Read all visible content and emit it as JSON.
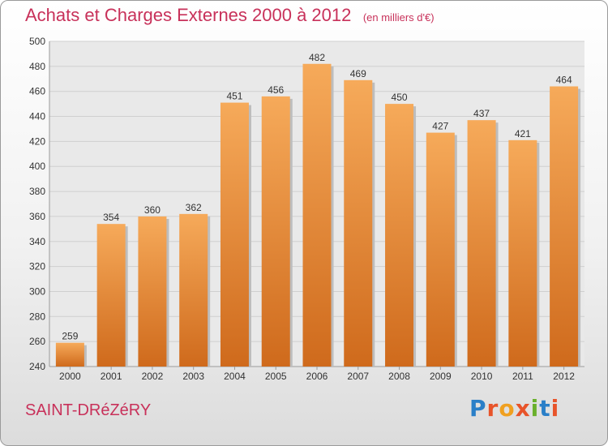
{
  "header": {
    "title": "Achats et Charges Externes 2000 à 2012",
    "unit": "(en milliers d'€)"
  },
  "footer": {
    "town": "SAINT-DRéZéRY",
    "logo_text": "Proxiti",
    "logo_colors": [
      "#2a7fc8",
      "#e8542a",
      "#f0a020",
      "#e8542a",
      "#6ab02c",
      "#2a7fc8",
      "#e8542a"
    ]
  },
  "colors": {
    "title": "#c8315a",
    "bar_light": "#f6aa5a",
    "bar_dark": "#cf6a1c",
    "grid": "#cfcfcf"
  },
  "chart_data": {
    "type": "bar",
    "title": "Achats et Charges Externes 2000 à 2012",
    "subtitle": "(en milliers d'€)",
    "categories": [
      "2000",
      "2001",
      "2002",
      "2003",
      "2004",
      "2005",
      "2006",
      "2007",
      "2008",
      "2009",
      "2010",
      "2011",
      "2012"
    ],
    "values": [
      259,
      354,
      360,
      362,
      451,
      456,
      482,
      469,
      450,
      427,
      437,
      421,
      464
    ],
    "ylim": [
      240,
      500
    ],
    "yticks": [
      240,
      260,
      280,
      300,
      320,
      340,
      360,
      380,
      400,
      420,
      440,
      460,
      480,
      500
    ],
    "grid": true,
    "data_labels": true
  }
}
